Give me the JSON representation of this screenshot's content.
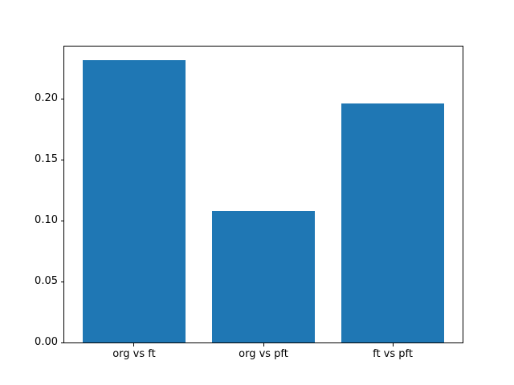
{
  "figure": {
    "background": "#ffffff"
  },
  "chart_data": {
    "type": "bar",
    "title": "",
    "xlabel": "",
    "ylabel": "",
    "categories": [
      "org vs ft",
      "org vs pft",
      "ft vs pft"
    ],
    "values": [
      0.232,
      0.108,
      0.196
    ],
    "bar_color": "#1f77b4",
    "bar_width": 0.8,
    "xlim": [
      -0.54,
      2.54
    ],
    "ylim": [
      0,
      0.2436
    ],
    "yticks": [
      {
        "value": 0.0,
        "label": "0.00"
      },
      {
        "value": 0.05,
        "label": "0.05"
      },
      {
        "value": 0.1,
        "label": "0.10"
      },
      {
        "value": 0.15,
        "label": "0.15"
      },
      {
        "value": 0.2,
        "label": "0.20"
      }
    ],
    "grid": false,
    "legend_position": "none"
  }
}
